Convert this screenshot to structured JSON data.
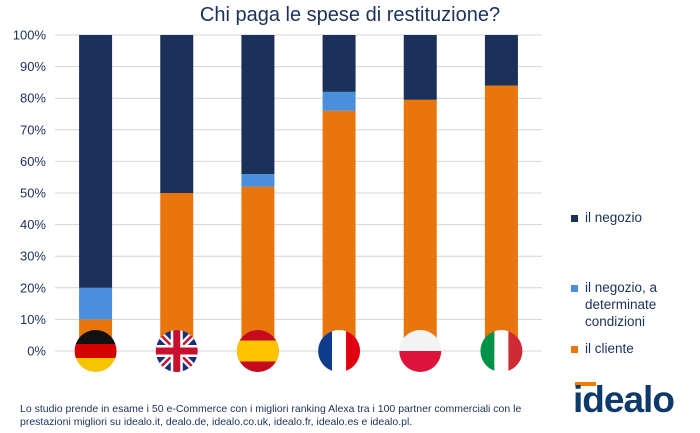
{
  "chart_data": {
    "type": "bar",
    "stacked": true,
    "title": "Chi paga le spese di restituzione?",
    "categories": [
      "Germania",
      "Regno Unito",
      "Spagna",
      "Francia",
      "Polonia",
      "Italia"
    ],
    "series": [
      {
        "name": "il cliente",
        "values": [
          10,
          50,
          52,
          76,
          79.5,
          84
        ]
      },
      {
        "name": "il negozio, a determinate condizioni",
        "values": [
          10,
          0,
          4,
          6,
          0,
          0
        ]
      },
      {
        "name": "il negozio",
        "values": [
          80,
          50,
          44,
          18,
          20.5,
          16
        ]
      }
    ],
    "y_ticks": [
      "0%",
      "10%",
      "20%",
      "30%",
      "40%",
      "50%",
      "60%",
      "70%",
      "80%",
      "90%",
      "100%"
    ],
    "ylim": [
      0,
      100
    ],
    "grid": true,
    "legend_position": "right"
  },
  "colors": {
    "il_negozio": "#1b3159",
    "il_negozio_condizioni": "#4a8fdb",
    "il_cliente": "#e8760c"
  },
  "flags": [
    "germany-flag-icon",
    "uk-flag-icon",
    "spain-flag-icon",
    "france-flag-icon",
    "poland-flag-icon",
    "italy-flag-icon"
  ],
  "legend": [
    {
      "label": "il negozio"
    },
    {
      "label": "il negozio, a determinate condizioni"
    },
    {
      "label": "il cliente"
    }
  ],
  "footnote": "Lo studio prende in esame i 50 e-Commerce con i migliori ranking Alexa tra i 100 partner commerciali con le prestazioni migliori su idealo.it, dealo.de, idealo.co.uk, idealo.fr, idealo.es e idealo.pl.",
  "logo": "idealo"
}
